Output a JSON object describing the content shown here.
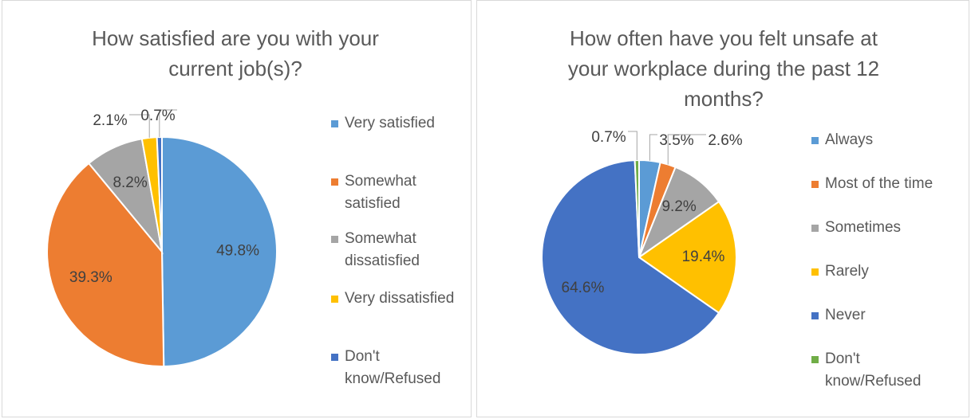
{
  "chart_data": [
    {
      "type": "pie",
      "title": "How satisfied are you with your current job(s)?",
      "categories": [
        "Very satisfied",
        "Somewhat satisfied",
        "Somewhat dissatisfied",
        "Very dissatisfied",
        "Don't know/Refused"
      ],
      "values": [
        49.8,
        39.3,
        8.2,
        2.1,
        0.7
      ],
      "value_labels": [
        "49.8%",
        "39.3%",
        "8.2%",
        "2.1%",
        "0.7%"
      ],
      "colors": [
        "#5b9bd5",
        "#ed7d31",
        "#a5a5a5",
        "#ffc000",
        "#4472c4"
      ],
      "legend": "right"
    },
    {
      "type": "pie",
      "title": "How often have you felt unsafe at your workplace during the past 12 months?",
      "categories": [
        "Always",
        "Most of the time",
        "Sometimes",
        "Rarely",
        "Never",
        "Don't know/Refused"
      ],
      "values": [
        3.5,
        2.6,
        9.2,
        19.4,
        64.6,
        0.7
      ],
      "value_labels": [
        "3.5%",
        "2.6%",
        "9.2%",
        "19.4%",
        "64.6%",
        "0.7%"
      ],
      "colors": [
        "#5b9bd5",
        "#ed7d31",
        "#a5a5a5",
        "#ffc000",
        "#4472c4",
        "#70ad47"
      ],
      "legend": "right"
    }
  ]
}
